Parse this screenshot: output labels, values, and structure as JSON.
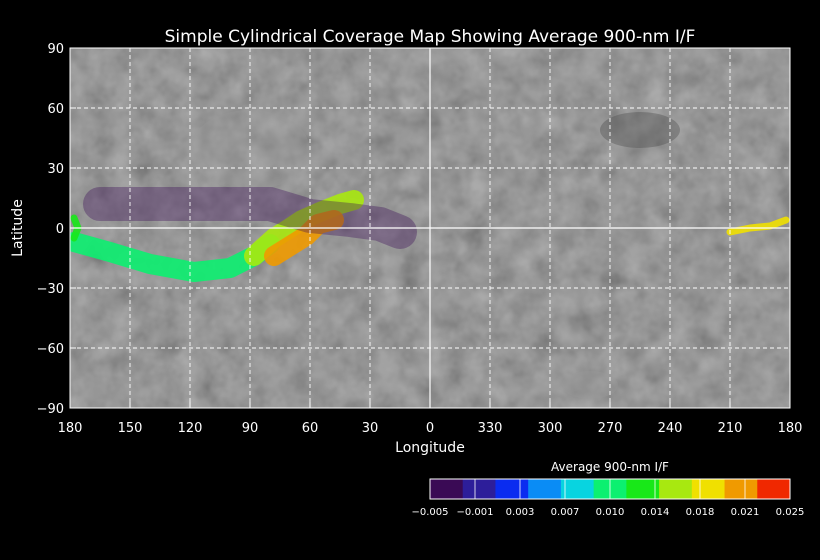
{
  "chart_data": {
    "type": "heatmap",
    "title": "Simple Cylindrical Coverage Map Showing Average 900-nm I/F",
    "xlabel": "Longitude",
    "ylabel": "Latitude",
    "x_tick_labels": [
      "180",
      "150",
      "120",
      "90",
      "60",
      "30",
      "0",
      "330",
      "300",
      "270",
      "240",
      "210",
      "180"
    ],
    "y_ticks": [
      90,
      60,
      30,
      0,
      -30,
      -60,
      -90
    ],
    "y_tick_labels": [
      "90",
      "60",
      "30",
      "0",
      "−30",
      "−60",
      "−90"
    ],
    "xlim_west_longitude": [
      180,
      -180
    ],
    "ylim": [
      -90,
      90
    ],
    "grid": true,
    "colorbar": {
      "title": "Average 900-nm I/F",
      "range": [
        -0.005,
        0.025
      ],
      "tick_labels": [
        "−0.005",
        "−0.001",
        "0.003",
        "0.007",
        "0.010",
        "0.014",
        "0.018",
        "0.021",
        "0.025"
      ],
      "colors": [
        "#3a0a55",
        "#2d1e9a",
        "#0a2cf0",
        "#0a8cf5",
        "#08d4e0",
        "#0cf070",
        "#18e818",
        "#a8e810",
        "#f0e000",
        "#f09a00",
        "#f02800"
      ]
    },
    "coverage_swaths": [
      {
        "name": "main-swath-low",
        "points": [
          [
            178,
            -7
          ],
          [
            160,
            -12
          ],
          [
            140,
            -18
          ],
          [
            118,
            -22
          ],
          [
            100,
            -20
          ],
          [
            88,
            -14
          ],
          [
            80,
            -8
          ]
        ],
        "value": 0.009
      },
      {
        "name": "main-swath-mid",
        "points": [
          [
            88,
            -14
          ],
          [
            78,
            -5
          ],
          [
            70,
            0
          ],
          [
            64,
            4
          ],
          [
            55,
            8
          ],
          [
            45,
            12
          ],
          [
            38,
            14
          ]
        ],
        "value": 0.016
      },
      {
        "name": "main-swath-high",
        "points": [
          [
            78,
            -14
          ],
          [
            70,
            -9
          ],
          [
            62,
            -4
          ],
          [
            56,
            2
          ],
          [
            48,
            4
          ]
        ],
        "value": 0.022
      },
      {
        "name": "faint-coverage",
        "points": [
          [
            165,
            12
          ],
          [
            140,
            12
          ],
          [
            110,
            12
          ],
          [
            80,
            12
          ],
          [
            60,
            6
          ],
          [
            40,
            4
          ],
          [
            25,
            2
          ],
          [
            15,
            -2
          ]
        ],
        "value": -0.004
      },
      {
        "name": "west-edge-strip",
        "points": [
          [
            178,
            5
          ],
          [
            176,
            0
          ],
          [
            178,
            -5
          ]
        ],
        "value": 0.012
      },
      {
        "name": "east-edge-strip",
        "points": [
          [
            -150,
            -2
          ],
          [
            -160,
            0
          ],
          [
            -170,
            1
          ],
          [
            -178,
            4
          ]
        ],
        "value": 0.019
      }
    ]
  }
}
